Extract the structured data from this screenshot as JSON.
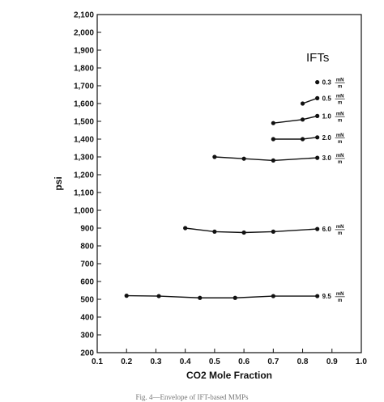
{
  "caption": "Fig. 4—Envelope of IFT-based MMPs",
  "chart_data": {
    "type": "line",
    "xlabel": "CO2 Mole Fraction",
    "ylabel": "psi",
    "xlim": [
      0.1,
      1.0
    ],
    "ylim": [
      200,
      2100
    ],
    "x_ticks": [
      "0.1",
      "0.2",
      "0.3",
      "0.4",
      "0.5",
      "0.6",
      "0.7",
      "0.8",
      "0.9",
      "1.0"
    ],
    "y_ticks": [
      "200",
      "300",
      "400",
      "500",
      "600",
      "700",
      "800",
      "900",
      "1,000",
      "1,100",
      "1,200",
      "1,300",
      "1,400",
      "1,500",
      "1,600",
      "1,700",
      "1,800",
      "1,900",
      "2,000",
      "2,100"
    ],
    "legend_title": "IFTs",
    "unit_numerator": "mN",
    "unit_denominator": "m",
    "grid": false,
    "series": [
      {
        "name": "0.3",
        "x": [
          0.85
        ],
        "y": [
          1720
        ]
      },
      {
        "name": "0.5",
        "x": [
          0.8,
          0.85
        ],
        "y": [
          1600,
          1630
        ]
      },
      {
        "name": "1.0",
        "x": [
          0.7,
          0.8,
          0.85
        ],
        "y": [
          1490,
          1510,
          1530
        ]
      },
      {
        "name": "2.0",
        "x": [
          0.7,
          0.8,
          0.85
        ],
        "y": [
          1400,
          1400,
          1410
        ]
      },
      {
        "name": "3.0",
        "x": [
          0.5,
          0.6,
          0.7,
          0.85
        ],
        "y": [
          1300,
          1290,
          1280,
          1295
        ]
      },
      {
        "name": "6.0",
        "x": [
          0.4,
          0.5,
          0.6,
          0.7,
          0.85
        ],
        "y": [
          900,
          880,
          875,
          880,
          895
        ]
      },
      {
        "name": "9.5",
        "x": [
          0.2,
          0.31,
          0.45,
          0.57,
          0.7,
          0.85
        ],
        "y": [
          520,
          518,
          508,
          508,
          518,
          518
        ]
      }
    ]
  }
}
